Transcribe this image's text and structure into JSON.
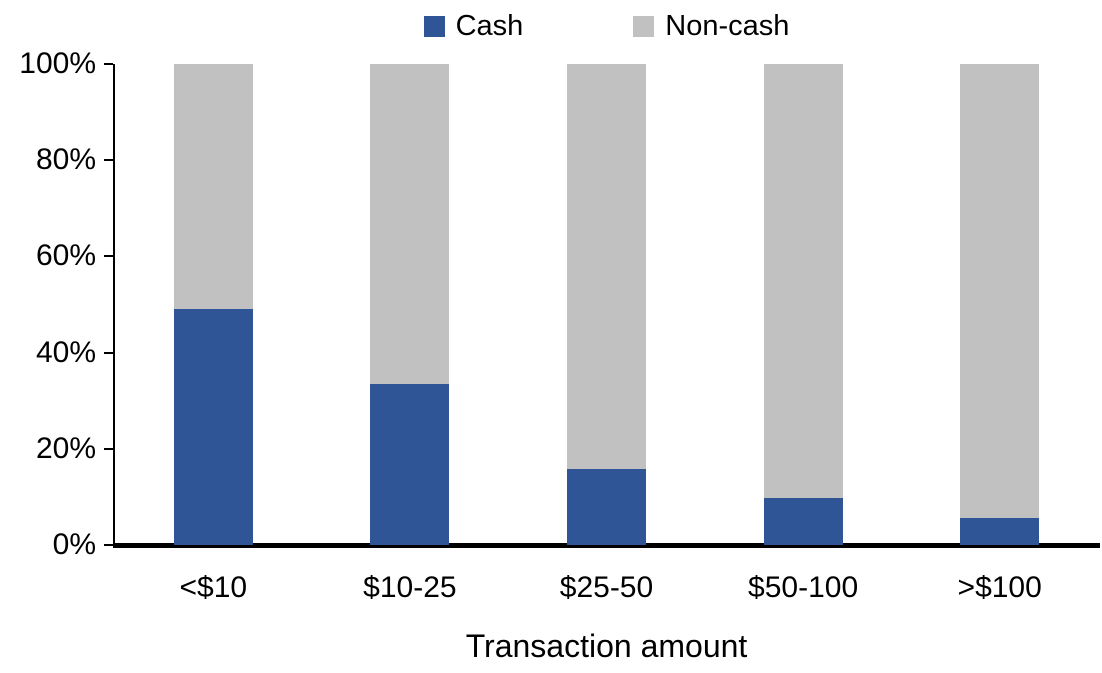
{
  "chart_data": {
    "type": "bar",
    "variant": "stacked-100-percent",
    "title": "",
    "xlabel": "Transaction amount",
    "ylabel": "",
    "categories": [
      "<$10",
      "$10-25",
      "$25-50",
      "$50-100",
      ">$100"
    ],
    "series": [
      {
        "name": "Cash",
        "color": "#2F5597",
        "values": [
          49,
          33.5,
          15.8,
          9.8,
          5.6
        ]
      },
      {
        "name": "Non-cash",
        "color": "#C1C1C1",
        "values": [
          51,
          66.5,
          84.2,
          90.2,
          94.4
        ]
      }
    ],
    "ylim": [
      0,
      100
    ],
    "y_ticks": [
      {
        "value": 0,
        "label": "0%"
      },
      {
        "value": 20,
        "label": "20%"
      },
      {
        "value": 40,
        "label": "40%"
      },
      {
        "value": 60,
        "label": "60%"
      },
      {
        "value": 80,
        "label": "80%"
      },
      {
        "value": 100,
        "label": "100%"
      }
    ],
    "legend_position": "top",
    "grid": false
  },
  "colors": {
    "cash": "#2F5597",
    "non_cash": "#C1C1C1",
    "axis": "#000000",
    "background": "#FFFFFF"
  }
}
